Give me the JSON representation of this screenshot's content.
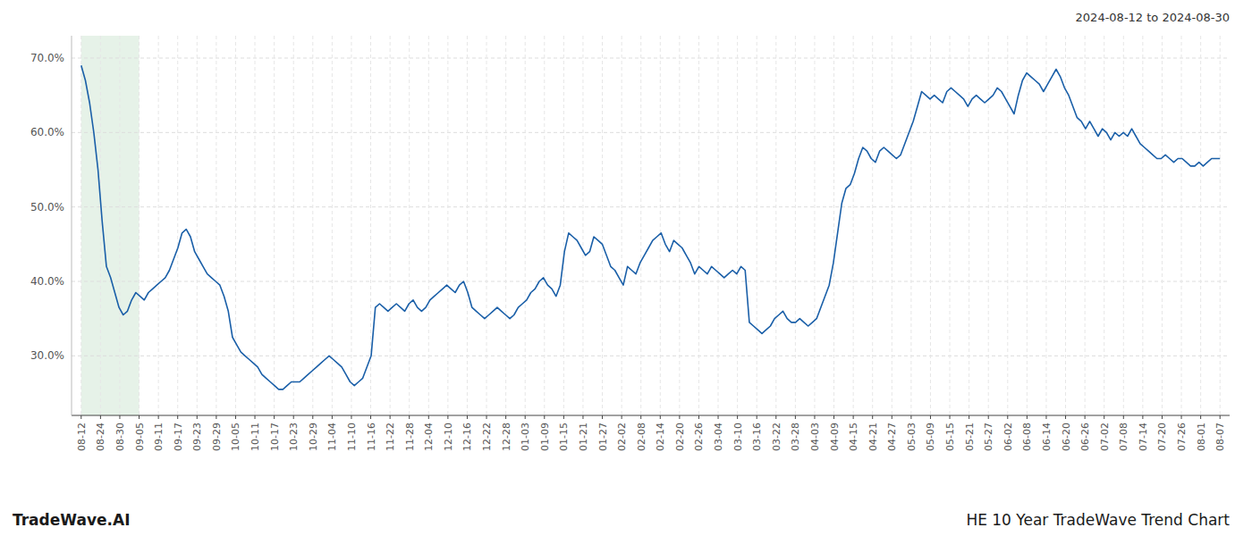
{
  "chart_data": {
    "type": "line",
    "title": "HE 10 Year TradeWave Trend Chart",
    "subtitle": "2024-08-12 to 2024-08-30",
    "annotations": [
      "TradeWave.AI"
    ],
    "color": "#1a5fa8",
    "grid": true,
    "shade": {
      "xmin": 0,
      "xmax": 3,
      "color": "#d6ead9"
    },
    "xlim": [
      -0.5,
      59.5
    ],
    "xticks": [
      {
        "value": 0,
        "label": "08-12"
      },
      {
        "value": 1,
        "label": "08-24"
      },
      {
        "value": 2,
        "label": "08-30"
      },
      {
        "value": 3,
        "label": "09-05"
      },
      {
        "value": 4,
        "label": "09-11"
      },
      {
        "value": 5,
        "label": "09-17"
      },
      {
        "value": 6,
        "label": "09-23"
      },
      {
        "value": 7,
        "label": "09-29"
      },
      {
        "value": 8,
        "label": "10-05"
      },
      {
        "value": 9,
        "label": "10-11"
      },
      {
        "value": 10,
        "label": "10-17"
      },
      {
        "value": 11,
        "label": "10-23"
      },
      {
        "value": 12,
        "label": "10-29"
      },
      {
        "value": 13,
        "label": "11-04"
      },
      {
        "value": 14,
        "label": "11-10"
      },
      {
        "value": 15,
        "label": "11-16"
      },
      {
        "value": 16,
        "label": "11-22"
      },
      {
        "value": 17,
        "label": "11-28"
      },
      {
        "value": 18,
        "label": "12-04"
      },
      {
        "value": 19,
        "label": "12-10"
      },
      {
        "value": 20,
        "label": "12-16"
      },
      {
        "value": 21,
        "label": "12-22"
      },
      {
        "value": 22,
        "label": "12-28"
      },
      {
        "value": 23,
        "label": "01-03"
      },
      {
        "value": 24,
        "label": "01-09"
      },
      {
        "value": 25,
        "label": "01-15"
      },
      {
        "value": 26,
        "label": "01-21"
      },
      {
        "value": 27,
        "label": "01-27"
      },
      {
        "value": 28,
        "label": "02-02"
      },
      {
        "value": 29,
        "label": "02-08"
      },
      {
        "value": 30,
        "label": "02-14"
      },
      {
        "value": 31,
        "label": "02-20"
      },
      {
        "value": 32,
        "label": "02-26"
      },
      {
        "value": 33,
        "label": "03-04"
      },
      {
        "value": 34,
        "label": "03-10"
      },
      {
        "value": 35,
        "label": "03-16"
      },
      {
        "value": 36,
        "label": "03-22"
      },
      {
        "value": 37,
        "label": "03-28"
      },
      {
        "value": 38,
        "label": "04-03"
      },
      {
        "value": 39,
        "label": "04-09"
      },
      {
        "value": 40,
        "label": "04-15"
      },
      {
        "value": 41,
        "label": "04-21"
      },
      {
        "value": 42,
        "label": "04-27"
      },
      {
        "value": 43,
        "label": "05-03"
      },
      {
        "value": 44,
        "label": "05-09"
      },
      {
        "value": 45,
        "label": "05-15"
      },
      {
        "value": 46,
        "label": "05-21"
      },
      {
        "value": 47,
        "label": "05-27"
      },
      {
        "value": 48,
        "label": "06-02"
      },
      {
        "value": 49,
        "label": "06-08"
      },
      {
        "value": 50,
        "label": "06-14"
      },
      {
        "value": 51,
        "label": "06-20"
      },
      {
        "value": 52,
        "label": "06-26"
      },
      {
        "value": 53,
        "label": "07-02"
      },
      {
        "value": 54,
        "label": "07-08"
      },
      {
        "value": 55,
        "label": "07-14"
      },
      {
        "value": 56,
        "label": "07-20"
      },
      {
        "value": 57,
        "label": "07-26"
      },
      {
        "value": 58,
        "label": "08-01"
      },
      {
        "value": 59,
        "label": "08-07"
      }
    ],
    "ylim": [
      22,
      73
    ],
    "yticks": [
      {
        "value": 30,
        "label": "30.0%"
      },
      {
        "value": 40,
        "label": "40.0%"
      },
      {
        "value": 50,
        "label": "50.0%"
      },
      {
        "value": 60,
        "label": "60.0%"
      },
      {
        "value": 70,
        "label": "70.0%"
      }
    ],
    "values": [
      69.0,
      67.0,
      64.0,
      60.0,
      55.0,
      48.0,
      42.0,
      40.5,
      38.5,
      36.5,
      35.5,
      36.0,
      37.5,
      38.5,
      38.0,
      37.5,
      38.5,
      39.0,
      39.5,
      40.0,
      40.5,
      41.5,
      43.0,
      44.5,
      46.5,
      47.0,
      46.0,
      44.0,
      43.0,
      42.0,
      41.0,
      40.5,
      40.0,
      39.5,
      38.0,
      36.0,
      32.5,
      31.5,
      30.5,
      30.0,
      29.5,
      29.0,
      28.5,
      27.5,
      27.0,
      26.5,
      26.0,
      25.5,
      25.5,
      26.0,
      26.5,
      26.5,
      26.5,
      27.0,
      27.5,
      28.0,
      28.5,
      29.0,
      29.5,
      30.0,
      29.5,
      29.0,
      28.5,
      27.5,
      26.5,
      26.0,
      26.5,
      27.0,
      28.5,
      30.0,
      36.5,
      37.0,
      36.5,
      36.0,
      36.5,
      37.0,
      36.5,
      36.0,
      37.0,
      37.5,
      36.5,
      36.0,
      36.5,
      37.5,
      38.0,
      38.5,
      39.0,
      39.5,
      39.0,
      38.5,
      39.5,
      40.0,
      38.5,
      36.5,
      36.0,
      35.5,
      35.0,
      35.5,
      36.0,
      36.5,
      36.0,
      35.5,
      35.0,
      35.5,
      36.5,
      37.0,
      37.5,
      38.5,
      39.0,
      40.0,
      40.5,
      39.5,
      39.0,
      38.0,
      39.5,
      44.0,
      46.5,
      46.0,
      45.5,
      44.5,
      43.5,
      44.0,
      46.0,
      45.5,
      45.0,
      43.5,
      42.0,
      41.5,
      40.5,
      39.5,
      42.0,
      41.5,
      41.0,
      42.5,
      43.5,
      44.5,
      45.5,
      46.0,
      46.5,
      45.0,
      44.0,
      45.5,
      45.0,
      44.5,
      43.5,
      42.5,
      41.0,
      42.0,
      41.5,
      41.0,
      42.0,
      41.5,
      41.0,
      40.5,
      41.0,
      41.5,
      41.0,
      42.0,
      41.5,
      34.5,
      34.0,
      33.5,
      33.0,
      33.5,
      34.0,
      35.0,
      35.5,
      36.0,
      35.0,
      34.5,
      34.5,
      35.0,
      34.5,
      34.0,
      34.5,
      35.0,
      36.5,
      38.0,
      39.5,
      42.5,
      46.5,
      50.5,
      52.5,
      53.0,
      54.5,
      56.5,
      58.0,
      57.5,
      56.5,
      56.0,
      57.5,
      58.0,
      57.5,
      57.0,
      56.5,
      57.0,
      58.5,
      60.0,
      61.5,
      63.5,
      65.5,
      65.0,
      64.5,
      65.0,
      64.5,
      64.0,
      65.5,
      66.0,
      65.5,
      65.0,
      64.5,
      63.5,
      64.5,
      65.0,
      64.5,
      64.0,
      64.5,
      65.0,
      66.0,
      65.5,
      64.5,
      63.5,
      62.5,
      65.0,
      67.0,
      68.0,
      67.5,
      67.0,
      66.5,
      65.5,
      66.5,
      67.5,
      68.5,
      67.5,
      66.0,
      65.0,
      63.5,
      62.0,
      61.5,
      60.5,
      61.5,
      60.5,
      59.5,
      60.5,
      60.0,
      59.0,
      60.0,
      59.5,
      60.0,
      59.5,
      60.5,
      59.5,
      58.5,
      58.0,
      57.5,
      57.0,
      56.5,
      56.5,
      57.0,
      56.5,
      56.0,
      56.5,
      56.5,
      56.0,
      55.5,
      55.5,
      56.0,
      55.5,
      56.0,
      56.5,
      56.5,
      56.5
    ]
  }
}
